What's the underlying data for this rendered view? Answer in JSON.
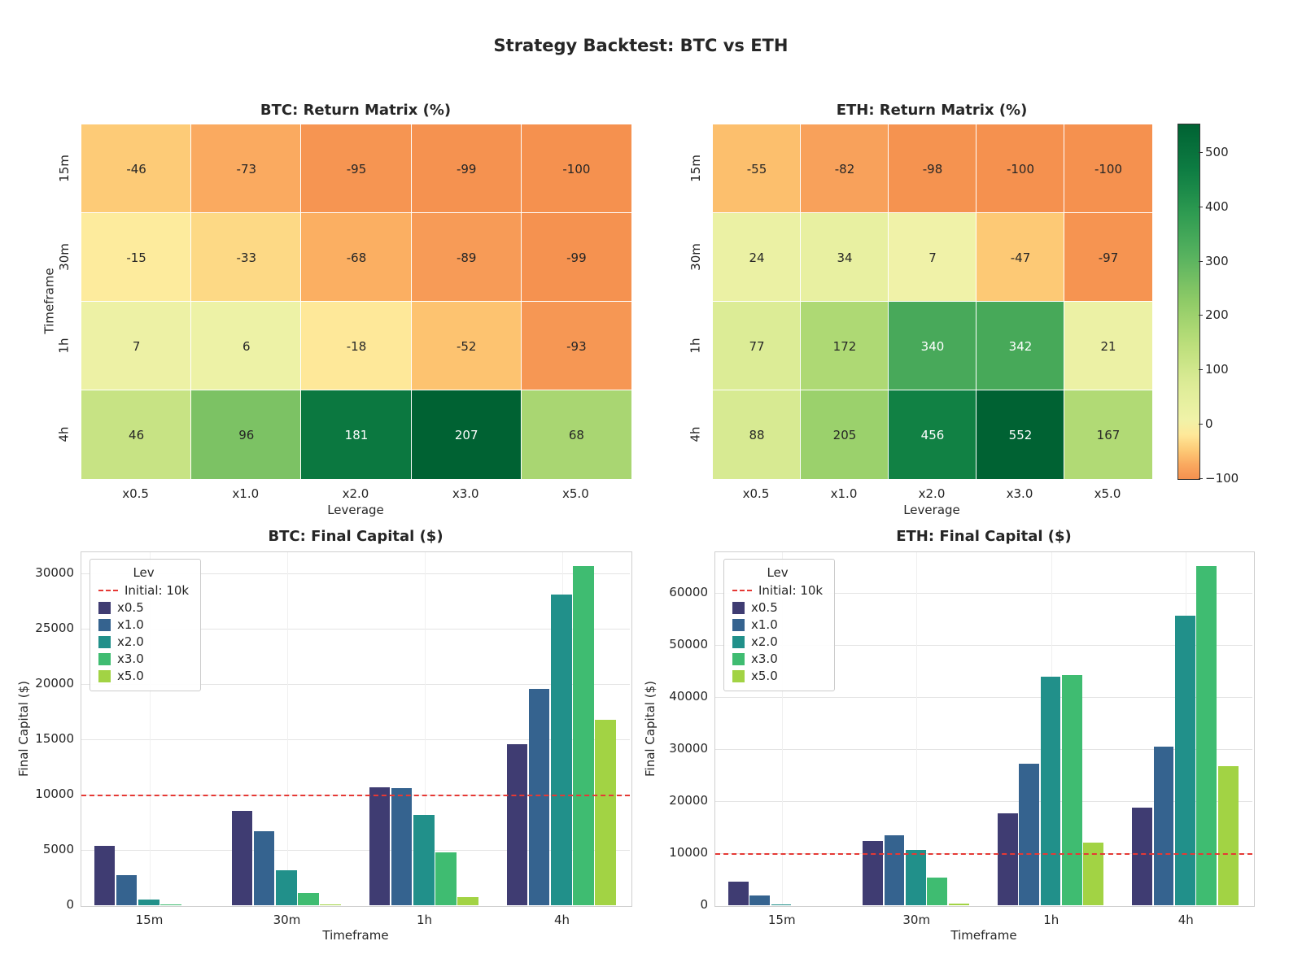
{
  "figure": {
    "title": "Strategy Backtest: BTC vs ETH",
    "background": "#ffffff",
    "text_color": "#262626"
  },
  "palette": {
    "leverage_colors": [
      "#3f3c72",
      "#35638f",
      "#21908a",
      "#3fbc71",
      "#a2d344"
    ],
    "refline_color": "#e53935",
    "white_text_threshold": 0.79,
    "heatmap_ramp": [
      [
        0.0,
        "#f5914f"
      ],
      [
        0.08,
        "#f89f5a"
      ],
      [
        0.17,
        "#fbb163"
      ],
      [
        0.25,
        "#fdc672"
      ],
      [
        0.33,
        "#fdd884"
      ],
      [
        0.42,
        "#feea9c"
      ],
      [
        0.5,
        "#f2f3aa"
      ],
      [
        0.57,
        "#dcec96"
      ],
      [
        0.64,
        "#b8dd78"
      ],
      [
        0.71,
        "#8cca66"
      ],
      [
        0.78,
        "#58b25f"
      ],
      [
        0.85,
        "#2f9c52"
      ],
      [
        0.92,
        "#0e7e43"
      ],
      [
        1.0,
        "#006233"
      ]
    ]
  },
  "chart_data": [
    {
      "type": "heatmap",
      "title": "BTC: Return Matrix (%)",
      "xlabel": "Leverage",
      "ylabel": "Timeframe",
      "columns": [
        "x0.5",
        "x1.0",
        "x2.0",
        "x3.0",
        "x5.0"
      ],
      "rows": [
        "15m",
        "30m",
        "1h",
        "4h"
      ],
      "values": [
        [
          -46,
          -73,
          -95,
          -99,
          -100
        ],
        [
          -15,
          -33,
          -68,
          -89,
          -99
        ],
        [
          7,
          6,
          -18,
          -52,
          -93
        ],
        [
          46,
          96,
          181,
          207,
          68
        ]
      ],
      "vmin": -100,
      "vmax": 207,
      "center": 0
    },
    {
      "type": "heatmap",
      "title": "ETH: Return Matrix (%)",
      "xlabel": "Leverage",
      "columns": [
        "x0.5",
        "x1.0",
        "x2.0",
        "x3.0",
        "x5.0"
      ],
      "rows": [
        "15m",
        "30m",
        "1h",
        "4h"
      ],
      "values": [
        [
          -55,
          -82,
          -98,
          -100,
          -100
        ],
        [
          24,
          34,
          7,
          -47,
          -97
        ],
        [
          77,
          172,
          340,
          342,
          21
        ],
        [
          88,
          205,
          456,
          552,
          167
        ]
      ],
      "vmin": -100,
      "vmax": 552,
      "center": 0,
      "colorbar": {
        "ticks": [
          500,
          400,
          300,
          200,
          100,
          0,
          -100
        ]
      }
    },
    {
      "type": "bar",
      "title": "BTC: Final Capital ($)",
      "xlabel": "Timeframe",
      "ylabel": "Final Capital ($)",
      "categories": [
        "15m",
        "30m",
        "1h",
        "4h"
      ],
      "series": [
        {
          "name": "x0.5",
          "values": [
            5400,
            8500,
            10700,
            14600
          ]
        },
        {
          "name": "x1.0",
          "values": [
            2700,
            6700,
            10600,
            19600
          ]
        },
        {
          "name": "x2.0",
          "values": [
            500,
            3200,
            8200,
            28100
          ]
        },
        {
          "name": "x3.0",
          "values": [
            100,
            1100,
            4800,
            30700
          ]
        },
        {
          "name": "x5.0",
          "values": [
            0,
            100,
            700,
            16800
          ]
        }
      ],
      "ylim": [
        0,
        32000
      ],
      "yticks": [
        0,
        5000,
        10000,
        15000,
        20000,
        25000,
        30000
      ],
      "refline": {
        "value": 10000
      },
      "legend": {
        "title": "Lev",
        "refline_label": "Initial: 10k"
      }
    },
    {
      "type": "bar",
      "title": "ETH: Final Capital ($)",
      "xlabel": "Timeframe",
      "ylabel": "Final Capital ($)",
      "categories": [
        "15m",
        "30m",
        "1h",
        "4h"
      ],
      "series": [
        {
          "name": "x0.5",
          "values": [
            4500,
            12400,
            17700,
            18800
          ]
        },
        {
          "name": "x1.0",
          "values": [
            1800,
            13400,
            27200,
            30500
          ]
        },
        {
          "name": "x2.0",
          "values": [
            200,
            10700,
            44000,
            55600
          ]
        },
        {
          "name": "x3.0",
          "values": [
            0,
            5300,
            44200,
            65200
          ]
        },
        {
          "name": "x5.0",
          "values": [
            0,
            300,
            12100,
            26700
          ]
        }
      ],
      "ylim": [
        0,
        68000
      ],
      "yticks": [
        0,
        10000,
        20000,
        30000,
        40000,
        50000,
        60000
      ],
      "refline": {
        "value": 10000
      },
      "legend": {
        "title": "Lev",
        "refline_label": "Initial: 10k"
      }
    }
  ]
}
